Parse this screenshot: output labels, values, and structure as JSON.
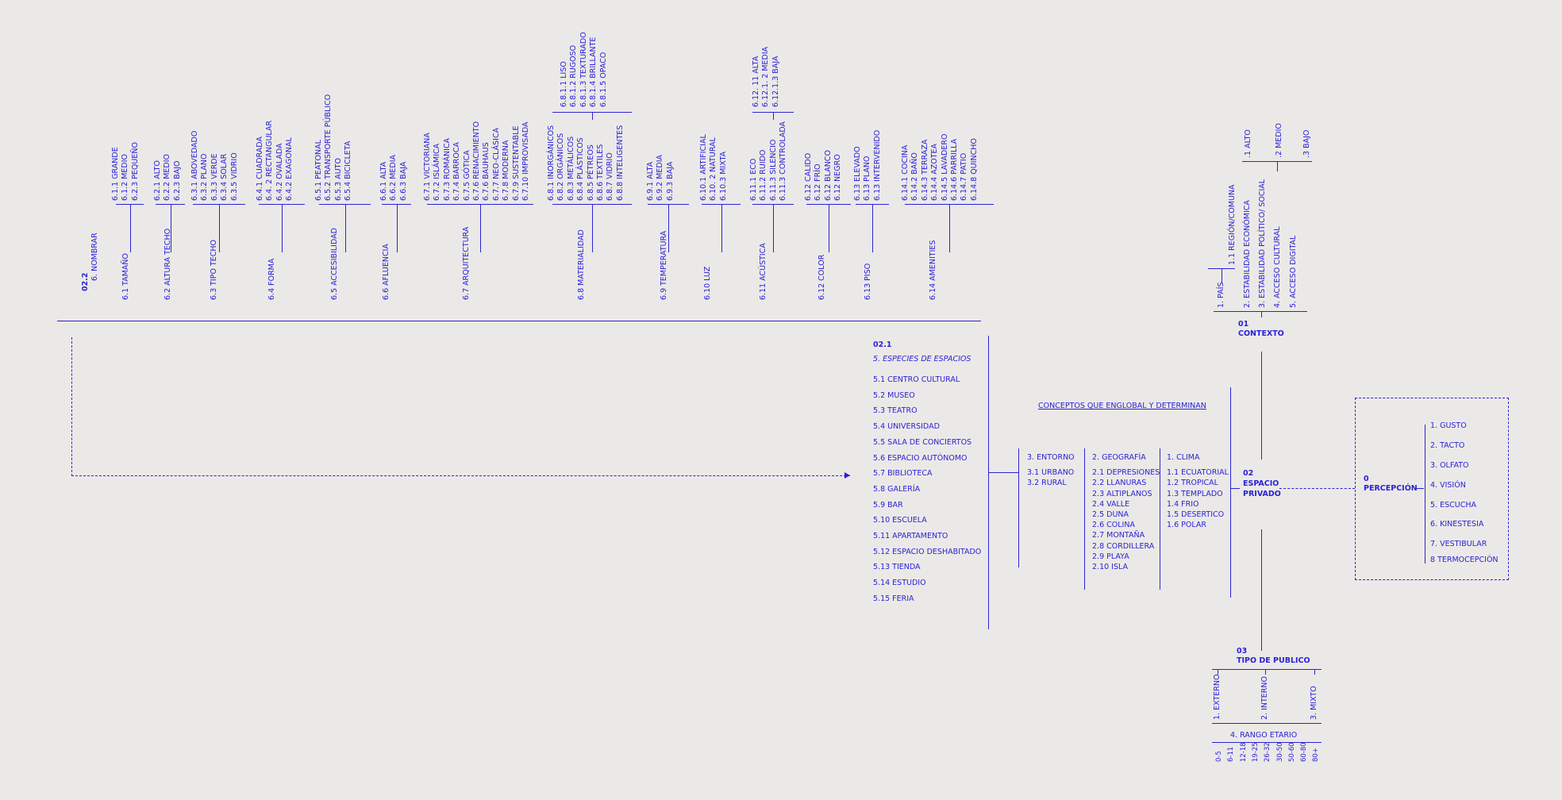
{
  "colors": {
    "ink": "#2a23d6",
    "background": "#ebe9e7"
  },
  "center": {
    "num": "0",
    "label": "PERCEPCIÓN"
  },
  "senses": [
    "1. GUSTO",
    "2. TACTO",
    "3. OLFATO",
    "4. VISIÓN",
    "5. ESCUCHA",
    "6. KINESTESIA",
    "7. VESTIBULAR",
    "8 TERMOCEPCIÓN"
  ],
  "espacio_privado": {
    "num": "02",
    "line1": "ESPACIO",
    "line2": "PRIVADO"
  },
  "conceptos": "CONCEPTOS QUE ENGLOBAL Y DETERMINAN",
  "clima": {
    "title": "1. CLIMA",
    "items": [
      "1.1 ECUATORIAL",
      "1.2 TROPICAL",
      "1.3 TEMPLADO",
      "1.4 FRIO",
      "1.5 DESERTICO",
      "1.6 POLAR"
    ]
  },
  "geografia": {
    "title": "2. GEOGRAFÍA",
    "items": [
      "2.1 DEPRESIONES",
      "2.2 LLANURAS",
      "2.3 ALTIPLANOS",
      "2.4 VALLE",
      "2.5 DUNA",
      "2.6 COLINA",
      "2.7 MONTAÑA",
      "2.8 CORDILLERA",
      "2.9 PLAYA",
      "2.10 ISLA"
    ]
  },
  "entorno": {
    "title": "3. ENTORNO",
    "items": [
      "3.1 URBANO",
      "3.2 RURAL"
    ]
  },
  "especies": {
    "num": "02.1",
    "title": "5. ESPECIES DE ESPACIOS",
    "items": [
      "5.1 CENTRO CULTURAL",
      "5.2 MUSEO",
      "5.3 TEATRO",
      "5.4 UNIVERSIDAD",
      "5.5 SALA DE CONCIERTOS",
      "5.6 ESPACIO AUTÓNOMO",
      "5.7 BIBLIOTECA",
      "5.8 GALERÍA",
      "5.9 BAR",
      "5.10 ESCUELA",
      "5.11 APARTAMENTO",
      "5.12 ESPACIO DESHABITADO",
      "5.13 TIENDA",
      "5.14 ESTUDIO",
      "5.15 FERIA"
    ]
  },
  "contexto": {
    "num": "01",
    "label": "CONTEXTO",
    "items": [
      "1. PAÍS",
      "1.1 REGIÓN/COMUNA",
      "2. ESTABILIDAD ECONÓMICA",
      "3. ESTABILIDAD POLÍTICO/ SOCIAL",
      "4. ACCESO CULTURAL",
      "5. ACCESO DIGITAL"
    ],
    "levels": [
      ".1 ALTO",
      ".2 MEDIO",
      ".3 BAJO"
    ]
  },
  "publico": {
    "num": "03",
    "label": "TIPO DE PUBLICO",
    "items": [
      "1. EXTERNO",
      "2. INTERNO",
      "3. MIXTO"
    ],
    "rango": "4. RANGO ETARIO",
    "ages": [
      "0-5",
      "6-11",
      "12-18",
      "19-25",
      "26-32",
      "30-50",
      "50-60",
      "60-80",
      "80+"
    ]
  },
  "nombrar": {
    "num": "02.2",
    "label": "6. NOMBRAR"
  },
  "groups": [
    {
      "label": "6.1 TAMAÑO",
      "subs": [
        {
          "items": [
            "6.1.1 GRANDE",
            "6.1.2 MEDIO",
            "6.2.3 PEQUEÑO"
          ]
        }
      ]
    },
    {
      "label": "6.2 ALTURA TECHO",
      "subs": [
        {
          "items": [
            "6.2.1 ALTO",
            "6.2.2 MEDIO",
            "6.2.3 BAJO"
          ]
        }
      ]
    },
    {
      "label": "6.3 TIPO TECHO",
      "subs": [
        {
          "items": [
            "6.3.1 ABOVEDADO",
            "6.3.2 PLANO",
            "6.3.3 VERDE",
            "6.3.4 SOLAR",
            "6.3.5 VIDRIO"
          ]
        }
      ]
    },
    {
      "label": "6.4 FORMA",
      "subs": [
        {
          "items": [
            "6.4.1 CUADRADA",
            "6.4. 2 RECTANGULAR",
            "6.4.2 OVALADA",
            "6.4.2 EXAGONAL"
          ]
        }
      ]
    },
    {
      "label": "6.5 ACCESIBILIDAD",
      "subs": [
        {
          "items": [
            "6.5.1 PEATONAL",
            "6.5.2 TRANSPORTE PÚBLICO",
            "6.5.3 AUTO",
            "6.5.4 BICICLETA"
          ]
        }
      ]
    },
    {
      "label": "6.6 AFLUENCIA",
      "subs": [
        {
          "items": [
            "6.6.1 ALTA",
            "6.6.2 MEDIA",
            "6.6.3 BAJA"
          ]
        }
      ]
    },
    {
      "label": "6.7 ARQUITECTURA",
      "subs": [
        {
          "items": [
            "6.7.1 VICTORIANA",
            "6.7.2 ISLÁMICA",
            "6.7.3 ROMÁNICA",
            "6.7.4 BARROCA",
            "6.7.5 GÓTICA",
            "6.7.6 RENACIMIENTO",
            "6.7.6 BAUHAUS",
            "6.7.7 NEO-CLÁSICA",
            "6.7.8 MODERNA",
            "6.7.9 SUSTENTABLE",
            "6.7.10 IMPROVISADA"
          ]
        }
      ]
    },
    {
      "label": "6.8 MATERIALIDAD",
      "subs": [
        {
          "items": [
            "6.8.1 INORGÁNICOS",
            "6.8.2 ORGÁNICOS",
            "6.8.3 METÁLICOS",
            "6.8.4 PLÁSTICOS",
            "6.8.5 PÉTREOS",
            "6.8.6 TEXTILES",
            "6.8.7 VIDRIO",
            "6.8.8 INTELIGENTES"
          ]
        },
        {
          "items": [
            "6.8.1.1 LISO",
            "6.8.1.2 RUGOSO",
            "6.8.1.3 TEXTURADO",
            "6.8.1.4 BRILLANTE",
            "6.8.1.5 OPACO"
          ]
        }
      ]
    },
    {
      "label": "6.9 TEMPERATURA",
      "subs": [
        {
          "items": [
            "6.9.1 ALTA",
            "6.9.2 MEDIA",
            "6.9.3 BAJA"
          ]
        }
      ]
    },
    {
      "label": "6.10 LUZ",
      "subs": [
        {
          "items": [
            "6.10.1 ARTIFICIAL",
            "6.10. 2 NATURAL",
            "6.10.3 MIXTA"
          ]
        }
      ]
    },
    {
      "label": "6.11 ACÚSTICA",
      "subs": [
        {
          "items": [
            "6.11.1 ECO",
            "6.11.2 RUIDO",
            "6.11.3 SILENCIO",
            "6.11.3 CONTROLADA"
          ]
        },
        {
          "items": [
            "6.12. 11 ALTA",
            "6.12.1. 2 MEDIA",
            "6.12.1.3 BAJA"
          ]
        }
      ]
    },
    {
      "label": "6.12 COLOR",
      "subs": [
        {
          "items": [
            "6.12 CALIDO",
            "6.12 FRÍO",
            "6.12 BLANCO",
            "6.12 NEGRO"
          ]
        }
      ]
    },
    {
      "label": "6.13 PISO",
      "subs": [
        {
          "items": [
            "6.13 ELEVADO",
            "6.13 PLANO",
            "6.13 INTERVENIDO"
          ]
        }
      ]
    },
    {
      "label": "6.14 AMENITIES",
      "subs": [
        {
          "items": [
            "6.14.1 COCINA",
            "6.14.2 BAÑO",
            "6.14.3 TERRAZA",
            "6.14.4 AZOTEA",
            "6.14.5 LAVADERO",
            "6.14.6 PARRILLA",
            "6.14.7 PATIO",
            "6.14.8 QUINCHO"
          ]
        }
      ]
    }
  ]
}
